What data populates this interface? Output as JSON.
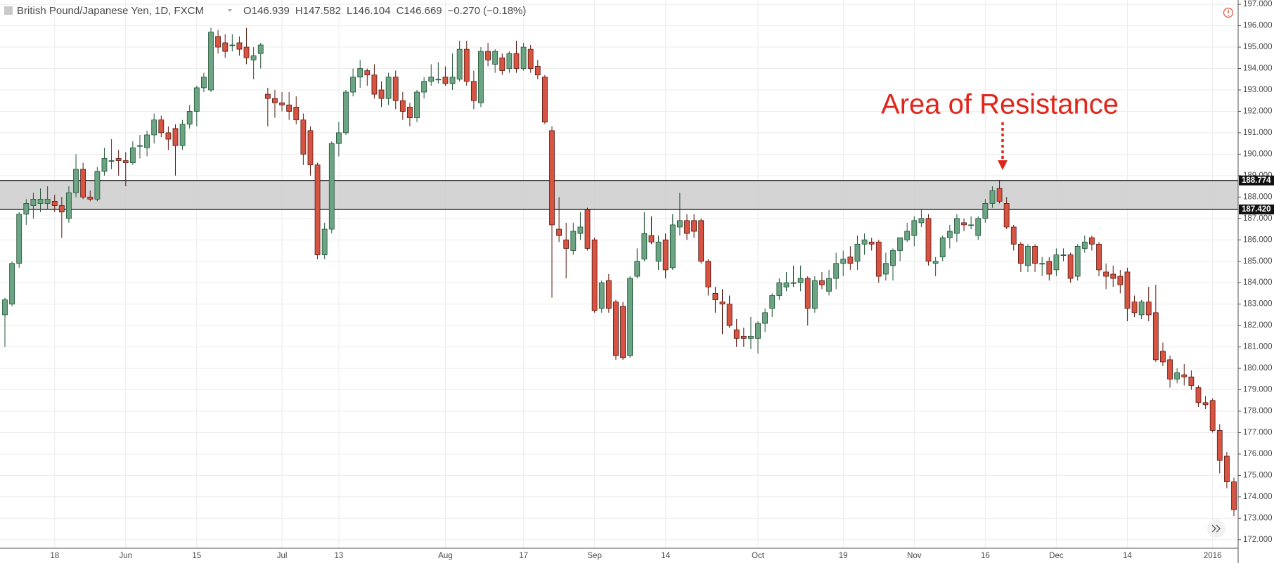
{
  "chart_data": {
    "type": "candlestick",
    "title": "British Pound/Japanese Yen, 1D, FXCM",
    "header_fields": [
      {
        "label": "O",
        "value": "146.939"
      },
      {
        "label": "H",
        "value": "147.582"
      },
      {
        "label": "L",
        "value": "146.104"
      },
      {
        "label": "C",
        "value": "146.669"
      }
    ],
    "header_change": "−0.270 (−0.18%)",
    "annotation": "Area of Resistance",
    "up_color": "#6ba583",
    "down_color": "#d75442",
    "zone_color": "#cccccc",
    "resistance_levels": [
      {
        "value": 188.774,
        "label": "188.774"
      },
      {
        "value": 187.42,
        "label": "187.420"
      }
    ],
    "ylim": [
      171.6,
      197.2
    ],
    "yticks": [
      {
        "value": 172,
        "label": "172.000"
      },
      {
        "value": 173,
        "label": "173.000"
      },
      {
        "value": 174,
        "label": "174.000"
      },
      {
        "value": 175,
        "label": "175.000"
      },
      {
        "value": 176,
        "label": "176.000"
      },
      {
        "value": 177,
        "label": "177.000"
      },
      {
        "value": 178,
        "label": "178.000"
      },
      {
        "value": 179,
        "label": "179.000"
      },
      {
        "value": 180,
        "label": "180.000"
      },
      {
        "value": 181,
        "label": "181.000"
      },
      {
        "value": 182,
        "label": "182.000"
      },
      {
        "value": 183,
        "label": "183.000"
      },
      {
        "value": 184,
        "label": "184.000"
      },
      {
        "value": 185,
        "label": "185.000"
      },
      {
        "value": 186,
        "label": "186.000"
      },
      {
        "value": 187,
        "label": "187.000"
      },
      {
        "value": 188,
        "label": "188.000"
      },
      {
        "value": 189,
        "label": "189.000"
      },
      {
        "value": 190,
        "label": "190.000"
      },
      {
        "value": 191,
        "label": "191.000"
      },
      {
        "value": 192,
        "label": "192.000"
      },
      {
        "value": 193,
        "label": "193.000"
      },
      {
        "value": 194,
        "label": "194.000"
      },
      {
        "value": 195,
        "label": "195.000"
      },
      {
        "value": 196,
        "label": "196.000"
      },
      {
        "value": 197,
        "label": "197.000"
      }
    ],
    "categories": [
      null,
      null,
      null,
      null,
      null,
      null,
      null,
      "18",
      null,
      null,
      null,
      null,
      null,
      null,
      null,
      null,
      null,
      "Jun",
      null,
      null,
      null,
      null,
      null,
      null,
      null,
      null,
      null,
      "15",
      null,
      null,
      null,
      null,
      null,
      null,
      null,
      null,
      null,
      null,
      null,
      "Jul",
      null,
      null,
      null,
      null,
      null,
      null,
      null,
      "13",
      null,
      null,
      null,
      null,
      null,
      null,
      null,
      null,
      null,
      null,
      null,
      null,
      null,
      null,
      "Aug",
      null,
      null,
      null,
      null,
      null,
      null,
      null,
      null,
      null,
      null,
      "17",
      null,
      null,
      null,
      null,
      null,
      null,
      null,
      null,
      null,
      "Sep",
      null,
      null,
      null,
      null,
      null,
      null,
      null,
      null,
      null,
      "14",
      null,
      null,
      null,
      null,
      null,
      null,
      null,
      null,
      null,
      null,
      null,
      null,
      "Oct",
      null,
      null,
      null,
      null,
      null,
      null,
      null,
      null,
      null,
      null,
      null,
      "19",
      null,
      null,
      null,
      null,
      null,
      null,
      null,
      null,
      null,
      "Nov",
      null,
      null,
      null,
      null,
      null,
      null,
      null,
      null,
      null,
      "16",
      null,
      null,
      null,
      null,
      null,
      null,
      null,
      null,
      null,
      "Dec",
      null,
      null,
      null,
      null,
      null,
      null,
      null,
      null,
      null,
      "14",
      null,
      null,
      null,
      null,
      null,
      null,
      null,
      null,
      null,
      null,
      null,
      "2016",
      null,
      null,
      null
    ],
    "ohlc": [
      [
        182.5,
        183.3,
        181.0,
        183.2
      ],
      [
        183.0,
        185.0,
        182.9,
        184.9
      ],
      [
        184.9,
        187.3,
        184.7,
        187.2
      ],
      [
        187.2,
        187.9,
        186.7,
        187.7
      ],
      [
        187.6,
        188.2,
        187.0,
        187.9
      ],
      [
        187.7,
        188.4,
        187.3,
        187.9
      ],
      [
        187.7,
        188.5,
        187.4,
        187.9
      ],
      [
        187.8,
        188.1,
        187.3,
        187.6
      ],
      [
        187.6,
        188.0,
        186.1,
        187.3
      ],
      [
        187.0,
        188.5,
        186.8,
        188.2
      ],
      [
        188.2,
        190.0,
        188.0,
        189.3
      ],
      [
        189.3,
        189.6,
        187.9,
        188.0
      ],
      [
        188.0,
        188.3,
        187.8,
        187.9
      ],
      [
        187.9,
        189.4,
        187.8,
        189.2
      ],
      [
        189.2,
        190.3,
        189.0,
        189.8
      ],
      [
        189.7,
        190.7,
        189.3,
        189.7
      ],
      [
        189.8,
        190.2,
        189.0,
        189.7
      ],
      [
        189.7,
        190.1,
        188.5,
        189.6
      ],
      [
        189.6,
        190.6,
        189.5,
        190.3
      ],
      [
        190.4,
        190.9,
        189.8,
        190.4
      ],
      [
        190.3,
        191.1,
        189.9,
        190.9
      ],
      [
        190.9,
        191.9,
        190.5,
        191.6
      ],
      [
        191.6,
        191.8,
        190.8,
        191.0
      ],
      [
        191.0,
        191.3,
        190.2,
        190.7
      ],
      [
        191.2,
        191.4,
        189.0,
        190.4
      ],
      [
        190.4,
        191.6,
        190.2,
        191.4
      ],
      [
        191.4,
        192.3,
        191.2,
        192.0
      ],
      [
        192.0,
        193.2,
        191.3,
        193.1
      ],
      [
        193.1,
        193.8,
        192.9,
        193.6
      ],
      [
        193.0,
        195.9,
        192.9,
        195.7
      ],
      [
        195.5,
        195.8,
        194.7,
        195.0
      ],
      [
        195.2,
        195.6,
        194.5,
        194.8
      ],
      [
        195.1,
        195.6,
        194.8,
        195.1
      ],
      [
        195.2,
        195.5,
        194.6,
        194.9
      ],
      [
        195.0,
        195.9,
        194.2,
        194.5
      ],
      [
        194.4,
        195.0,
        193.5,
        194.6
      ],
      [
        194.7,
        195.2,
        194.0,
        195.1
      ],
      [
        192.8,
        193.1,
        191.3,
        192.6
      ],
      [
        192.6,
        193.0,
        191.7,
        192.4
      ],
      [
        192.4,
        192.9,
        192.0,
        192.3
      ],
      [
        192.3,
        192.9,
        191.6,
        192.0
      ],
      [
        192.2,
        192.7,
        191.4,
        191.6
      ],
      [
        191.6,
        191.9,
        189.5,
        190.0
      ],
      [
        191.1,
        191.3,
        189.0,
        189.5
      ],
      [
        189.5,
        189.6,
        185.1,
        185.3
      ],
      [
        185.3,
        186.8,
        185.1,
        186.5
      ],
      [
        186.5,
        190.6,
        186.3,
        190.5
      ],
      [
        190.5,
        191.5,
        189.9,
        191.0
      ],
      [
        191.0,
        193.0,
        190.9,
        192.9
      ],
      [
        192.9,
        194.0,
        192.7,
        193.6
      ],
      [
        193.6,
        194.4,
        193.1,
        194.0
      ],
      [
        193.9,
        194.0,
        193.2,
        193.7
      ],
      [
        193.7,
        194.2,
        192.6,
        192.8
      ],
      [
        193.0,
        193.4,
        192.2,
        192.6
      ],
      [
        192.6,
        193.8,
        192.3,
        193.6
      ],
      [
        193.6,
        193.9,
        192.1,
        192.5
      ],
      [
        192.5,
        192.9,
        191.6,
        192.0
      ],
      [
        192.2,
        192.4,
        191.3,
        191.7
      ],
      [
        191.7,
        193.0,
        191.5,
        192.9
      ],
      [
        192.9,
        193.6,
        192.6,
        193.4
      ],
      [
        193.4,
        194.2,
        193.2,
        193.6
      ],
      [
        193.5,
        194.3,
        193.3,
        193.5
      ],
      [
        193.6,
        194.1,
        193.2,
        193.3
      ],
      [
        193.3,
        194.7,
        193.0,
        193.6
      ],
      [
        193.5,
        195.3,
        193.4,
        194.9
      ],
      [
        194.9,
        195.3,
        193.2,
        193.4
      ],
      [
        193.4,
        193.9,
        192.1,
        192.5
      ],
      [
        192.4,
        195.0,
        192.2,
        194.8
      ],
      [
        194.8,
        195.2,
        194.1,
        194.4
      ],
      [
        194.2,
        194.9,
        193.8,
        194.8
      ],
      [
        194.5,
        194.7,
        193.7,
        193.9
      ],
      [
        194.0,
        194.8,
        193.8,
        194.7
      ],
      [
        194.7,
        195.3,
        193.8,
        194.0
      ],
      [
        194.0,
        195.2,
        193.9,
        195.0
      ],
      [
        194.9,
        195.1,
        193.8,
        194.0
      ],
      [
        194.1,
        194.4,
        193.5,
        193.7
      ],
      [
        193.6,
        193.7,
        191.4,
        191.5
      ],
      [
        191.1,
        191.3,
        183.3,
        186.7
      ],
      [
        186.5,
        188.0,
        185.9,
        186.2
      ],
      [
        186.0,
        186.8,
        184.2,
        185.6
      ],
      [
        185.5,
        186.8,
        185.3,
        186.4
      ],
      [
        186.3,
        187.3,
        186.0,
        186.6
      ],
      [
        187.4,
        187.5,
        185.5,
        185.6
      ],
      [
        186.0,
        186.1,
        182.6,
        182.7
      ],
      [
        182.8,
        184.1,
        182.6,
        184.0
      ],
      [
        184.1,
        184.4,
        182.6,
        182.8
      ],
      [
        183.1,
        183.2,
        180.4,
        180.6
      ],
      [
        182.9,
        183.1,
        180.4,
        180.5
      ],
      [
        180.6,
        184.3,
        180.5,
        184.2
      ],
      [
        184.3,
        185.6,
        184.2,
        185.0
      ],
      [
        185.1,
        187.3,
        185.0,
        186.3
      ],
      [
        186.2,
        187.1,
        185.8,
        185.9
      ],
      [
        185.0,
        186.2,
        184.6,
        185.9
      ],
      [
        186.0,
        186.3,
        184.2,
        184.6
      ],
      [
        184.7,
        187.2,
        184.6,
        186.7
      ],
      [
        186.6,
        188.2,
        186.2,
        186.9
      ],
      [
        186.9,
        187.2,
        186.0,
        186.3
      ],
      [
        186.9,
        187.2,
        186.1,
        186.4
      ],
      [
        186.9,
        187.0,
        184.9,
        185.0
      ],
      [
        185.0,
        185.1,
        183.4,
        183.8
      ],
      [
        183.5,
        183.8,
        182.6,
        183.2
      ],
      [
        183.1,
        183.7,
        181.6,
        183.0
      ],
      [
        183.0,
        183.4,
        181.9,
        182.0
      ],
      [
        181.8,
        182.3,
        181.0,
        181.4
      ],
      [
        181.5,
        181.9,
        181.0,
        181.4
      ],
      [
        181.4,
        182.4,
        180.9,
        181.5
      ],
      [
        181.4,
        182.2,
        180.7,
        182.1
      ],
      [
        182.1,
        182.8,
        181.7,
        182.6
      ],
      [
        182.8,
        183.5,
        182.4,
        183.4
      ],
      [
        183.4,
        184.2,
        183.2,
        184.0
      ],
      [
        183.8,
        184.5,
        183.6,
        184.0
      ],
      [
        184.0,
        184.8,
        183.8,
        184.0
      ],
      [
        184.0,
        184.8,
        183.6,
        184.2
      ],
      [
        184.2,
        184.3,
        182.0,
        182.8
      ],
      [
        182.8,
        184.3,
        182.6,
        184.1
      ],
      [
        184.1,
        184.5,
        183.7,
        183.9
      ],
      [
        183.6,
        184.6,
        183.4,
        184.2
      ],
      [
        184.2,
        185.4,
        183.7,
        184.9
      ],
      [
        184.9,
        185.5,
        184.3,
        185.1
      ],
      [
        185.2,
        185.7,
        184.6,
        184.9
      ],
      [
        185.0,
        186.2,
        184.6,
        185.8
      ],
      [
        185.8,
        186.3,
        185.3,
        186.0
      ],
      [
        185.9,
        186.1,
        185.5,
        185.8
      ],
      [
        185.9,
        186.0,
        184.0,
        184.3
      ],
      [
        184.4,
        185.4,
        184.1,
        184.9
      ],
      [
        184.8,
        185.6,
        184.1,
        185.5
      ],
      [
        185.5,
        186.1,
        185.0,
        186.1
      ],
      [
        186.0,
        186.8,
        185.9,
        186.4
      ],
      [
        186.2,
        187.1,
        185.7,
        186.9
      ],
      [
        186.8,
        187.4,
        186.6,
        187.0
      ],
      [
        187.0,
        187.2,
        184.8,
        185.0
      ],
      [
        184.9,
        185.2,
        184.3,
        185.0
      ],
      [
        185.2,
        186.2,
        185.0,
        186.1
      ],
      [
        186.1,
        186.7,
        185.6,
        186.4
      ],
      [
        186.3,
        187.2,
        185.9,
        187.0
      ],
      [
        186.8,
        187.0,
        186.4,
        186.7
      ],
      [
        186.7,
        187.1,
        186.5,
        186.7
      ],
      [
        186.2,
        187.1,
        186.0,
        187.0
      ],
      [
        187.0,
        187.9,
        186.8,
        187.7
      ],
      [
        187.7,
        188.5,
        187.5,
        188.3
      ],
      [
        188.4,
        188.8,
        187.7,
        187.8
      ],
      [
        187.7,
        188.0,
        186.5,
        186.6
      ],
      [
        186.6,
        186.7,
        185.5,
        185.8
      ],
      [
        185.8,
        185.9,
        184.5,
        184.9
      ],
      [
        184.8,
        185.8,
        184.5,
        185.7
      ],
      [
        185.7,
        185.8,
        184.5,
        184.9
      ],
      [
        184.9,
        185.2,
        184.3,
        184.9
      ],
      [
        185.0,
        185.2,
        184.1,
        184.4
      ],
      [
        184.6,
        185.6,
        184.3,
        185.3
      ],
      [
        185.3,
        185.6,
        185.0,
        185.3
      ],
      [
        185.3,
        185.4,
        184.0,
        184.2
      ],
      [
        184.3,
        185.8,
        184.1,
        185.7
      ],
      [
        185.6,
        186.2,
        185.4,
        185.9
      ],
      [
        186.1,
        186.2,
        185.5,
        185.8
      ],
      [
        185.8,
        185.9,
        184.3,
        184.6
      ],
      [
        184.5,
        184.9,
        183.7,
        184.3
      ],
      [
        184.4,
        184.8,
        183.8,
        184.2
      ],
      [
        184.3,
        184.6,
        183.5,
        183.9
      ],
      [
        184.5,
        184.7,
        182.2,
        182.8
      ],
      [
        183.1,
        183.4,
        182.4,
        182.6
      ],
      [
        182.5,
        183.2,
        182.3,
        183.1
      ],
      [
        183.1,
        183.8,
        182.2,
        182.5
      ],
      [
        182.6,
        183.9,
        180.3,
        180.4
      ],
      [
        180.8,
        181.2,
        180.1,
        180.3
      ],
      [
        180.4,
        180.6,
        179.1,
        179.5
      ],
      [
        179.5,
        180.0,
        179.3,
        179.8
      ],
      [
        179.7,
        180.2,
        179.2,
        179.6
      ],
      [
        179.6,
        179.9,
        179.0,
        179.2
      ],
      [
        179.1,
        179.2,
        178.2,
        178.4
      ],
      [
        178.4,
        178.7,
        178.1,
        178.3
      ],
      [
        178.5,
        178.6,
        177.0,
        177.1
      ],
      [
        177.1,
        177.4,
        175.1,
        175.7
      ],
      [
        175.9,
        176.1,
        174.4,
        174.7
      ],
      [
        174.7,
        174.9,
        173.1,
        173.4
      ]
    ]
  }
}
